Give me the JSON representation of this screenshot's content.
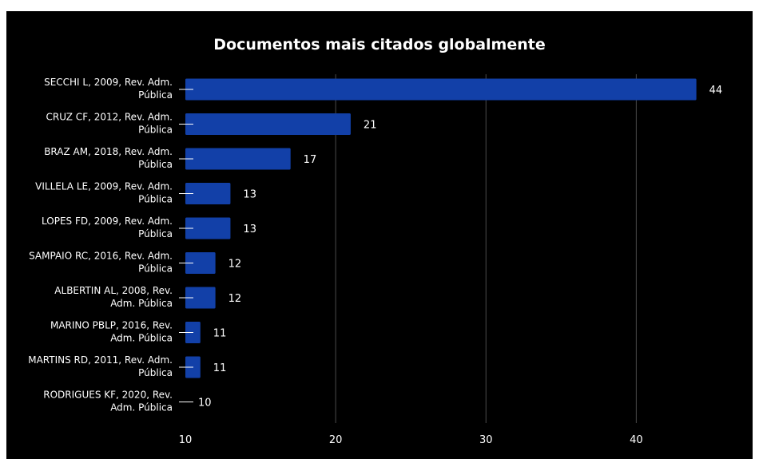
{
  "chart_data": {
    "type": "bar",
    "orientation": "horizontal",
    "title": "Documentos mais citados globalmente",
    "xlabel": "",
    "ylabel": "",
    "categories": [
      [
        "SECCHI L, 2009, Rev. Adm.",
        "Pública"
      ],
      [
        "CRUZ CF, 2012,  Rev. Adm.",
        "Pública"
      ],
      [
        "BRAZ AM, 2018, Rev. Adm.",
        "Pública"
      ],
      [
        "VILLELA LE, 2009,  Rev. Adm.",
        "Pública"
      ],
      [
        "LOPES FD, 2009,  Rev. Adm.",
        "Pública"
      ],
      [
        "SAMPAIO RC, 2016,  Rev. Adm.",
        "Pública"
      ],
      [
        "ALBERTIN AL, 2008,  Rev.",
        "Adm. Pública"
      ],
      [
        "MARINO PBLP, 2016,  Rev.",
        "Adm. Pública"
      ],
      [
        "MARTINS  RD, 2011, Rev. Adm.",
        "Pública"
      ],
      [
        "RODRIGUES KF, 2020,  Rev.",
        "Adm. Pública"
      ]
    ],
    "values": [
      44,
      21,
      17,
      13,
      13,
      12,
      12,
      11,
      11,
      10
    ],
    "xlim": [
      10,
      46.2
    ],
    "xticks": [
      10,
      20,
      30,
      40
    ],
    "grid": "vertical",
    "legend": "none",
    "bar_color": "#1240a8",
    "background_color": "#000000",
    "text_color": "#ffffff"
  }
}
